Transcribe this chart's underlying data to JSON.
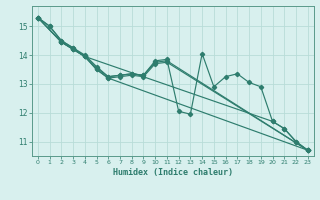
{
  "title": "",
  "xlabel": "Humidex (Indice chaleur)",
  "ylabel": "",
  "bg_color": "#d8f0ee",
  "grid_color": "#b8dcd8",
  "line_color": "#2e7d6e",
  "spine_color": "#5a9a8a",
  "xlim": [
    -0.5,
    23.5
  ],
  "ylim": [
    10.5,
    15.7
  ],
  "yticks": [
    11,
    12,
    13,
    14,
    15
  ],
  "xticks": [
    0,
    1,
    2,
    3,
    4,
    5,
    6,
    7,
    8,
    9,
    10,
    11,
    12,
    13,
    14,
    15,
    16,
    17,
    18,
    19,
    20,
    21,
    22,
    23
  ],
  "lines": [
    {
      "x": [
        0,
        1,
        2,
        3,
        4,
        5,
        6,
        7,
        8,
        9,
        10,
        11,
        12,
        13,
        14,
        15,
        16,
        17,
        18,
        19,
        20,
        21,
        22,
        23
      ],
      "y": [
        15.3,
        15.0,
        14.5,
        14.25,
        14.0,
        13.6,
        13.25,
        13.3,
        13.35,
        13.3,
        13.8,
        13.85,
        12.05,
        11.95,
        14.05,
        12.9,
        13.25,
        13.35,
        13.05,
        12.9,
        11.7,
        11.45,
        11.0,
        10.7
      ]
    },
    {
      "x": [
        0,
        1,
        2,
        3,
        4,
        5,
        6,
        7,
        8,
        9,
        10,
        11,
        23
      ],
      "y": [
        15.3,
        15.0,
        14.5,
        14.25,
        13.95,
        13.55,
        13.25,
        13.3,
        13.35,
        13.3,
        13.75,
        13.8,
        10.7
      ]
    },
    {
      "x": [
        0,
        2,
        3,
        4,
        5,
        6,
        7,
        8,
        9,
        10,
        11,
        23
      ],
      "y": [
        15.3,
        14.45,
        14.2,
        13.95,
        13.5,
        13.2,
        13.25,
        13.3,
        13.25,
        13.7,
        13.75,
        10.7
      ]
    },
    {
      "x": [
        0,
        2,
        3,
        4,
        5,
        6,
        23
      ],
      "y": [
        15.3,
        14.45,
        14.2,
        13.95,
        13.5,
        13.2,
        10.7
      ]
    },
    {
      "x": [
        0,
        2,
        3,
        4,
        20,
        21,
        22,
        23
      ],
      "y": [
        15.3,
        14.45,
        14.2,
        13.95,
        11.7,
        11.45,
        11.0,
        10.7
      ]
    }
  ]
}
